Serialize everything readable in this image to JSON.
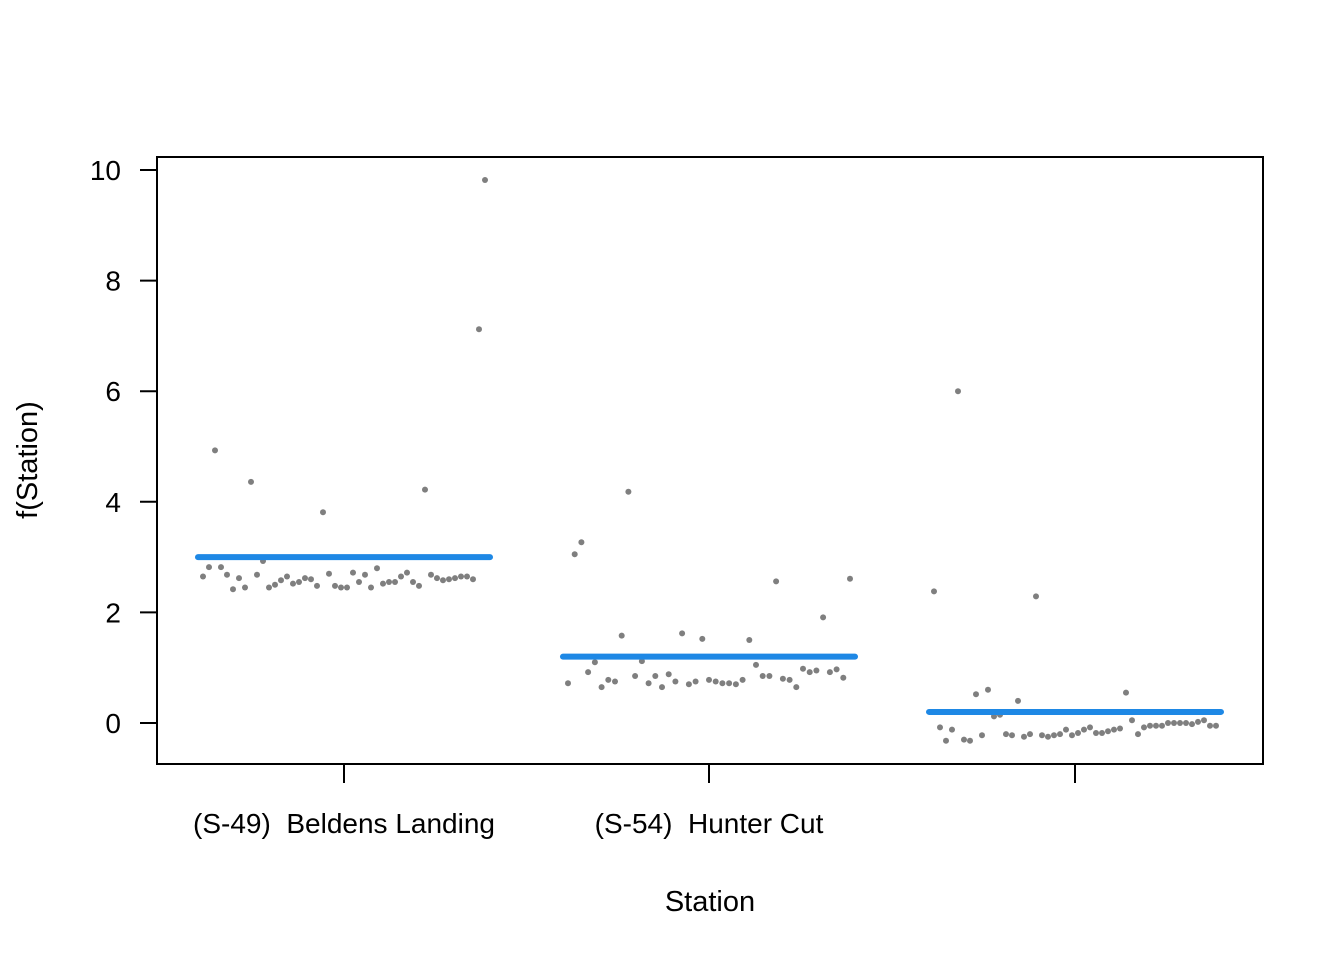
{
  "chart_data": {
    "type": "scatter",
    "xlabel": "Station",
    "ylabel": "f(Station)",
    "ylim": [
      -0.75,
      10.25
    ],
    "y_ticks": [
      0,
      2,
      4,
      6,
      8,
      10
    ],
    "y_tick_labels": [
      "0",
      "2",
      "4",
      "6",
      "8",
      "10"
    ],
    "categories": [
      "(S-49)  Beldens Landing",
      "(S-54)  Hunter Cut",
      ""
    ],
    "category_labels_shown": [
      "(S-49)  Beldens Landing",
      "(S-54)  Hunter Cut"
    ],
    "grid": false,
    "colors": {
      "points": "#7f7f7f",
      "effect_line": "#1e88e5",
      "axis": "#000000"
    },
    "effects": [
      3.0,
      1.2,
      0.2
    ],
    "partial_residuals": [
      [
        2.65,
        2.82,
        4.93,
        2.82,
        2.68,
        2.42,
        2.62,
        2.45,
        4.36,
        2.68,
        2.93,
        2.45,
        2.5,
        2.58,
        2.65,
        2.52,
        2.55,
        2.62,
        2.6,
        2.48,
        3.81,
        2.7,
        2.48,
        2.45,
        2.45,
        2.72,
        2.55,
        2.68,
        2.45,
        2.8,
        2.52,
        2.55,
        2.55,
        2.65,
        2.72,
        2.55,
        2.48,
        4.22,
        2.68,
        2.62,
        2.58,
        2.6,
        2.62,
        2.65,
        2.65,
        2.6,
        7.12,
        9.82
      ],
      [
        0.72,
        3.05,
        3.27,
        0.92,
        1.1,
        0.65,
        0.78,
        0.75,
        1.58,
        4.18,
        0.85,
        1.12,
        0.72,
        0.85,
        0.65,
        0.88,
        0.75,
        1.62,
        0.7,
        0.75,
        1.52,
        0.78,
        0.75,
        0.72,
        0.72,
        0.7,
        0.78,
        1.5,
        1.05,
        0.85,
        0.85,
        2.56,
        0.8,
        0.78,
        0.65,
        0.98,
        0.92,
        0.95,
        1.91,
        0.92,
        0.97,
        0.82,
        2.61
      ],
      [
        2.38,
        -0.08,
        -0.32,
        -0.12,
        6.0,
        -0.3,
        -0.32,
        0.52,
        -0.22,
        0.6,
        0.12,
        0.15,
        -0.2,
        -0.22,
        0.4,
        -0.25,
        -0.2,
        2.29,
        -0.22,
        -0.25,
        -0.22,
        -0.2,
        -0.12,
        -0.22,
        -0.18,
        -0.12,
        -0.08,
        -0.18,
        -0.18,
        -0.15,
        -0.12,
        -0.1,
        0.55,
        0.05,
        -0.2,
        -0.08,
        -0.05,
        -0.05,
        -0.05,
        0.0,
        0.0,
        0.0,
        0.0,
        -0.02,
        0.02,
        0.05,
        -0.05,
        -0.05
      ]
    ]
  }
}
